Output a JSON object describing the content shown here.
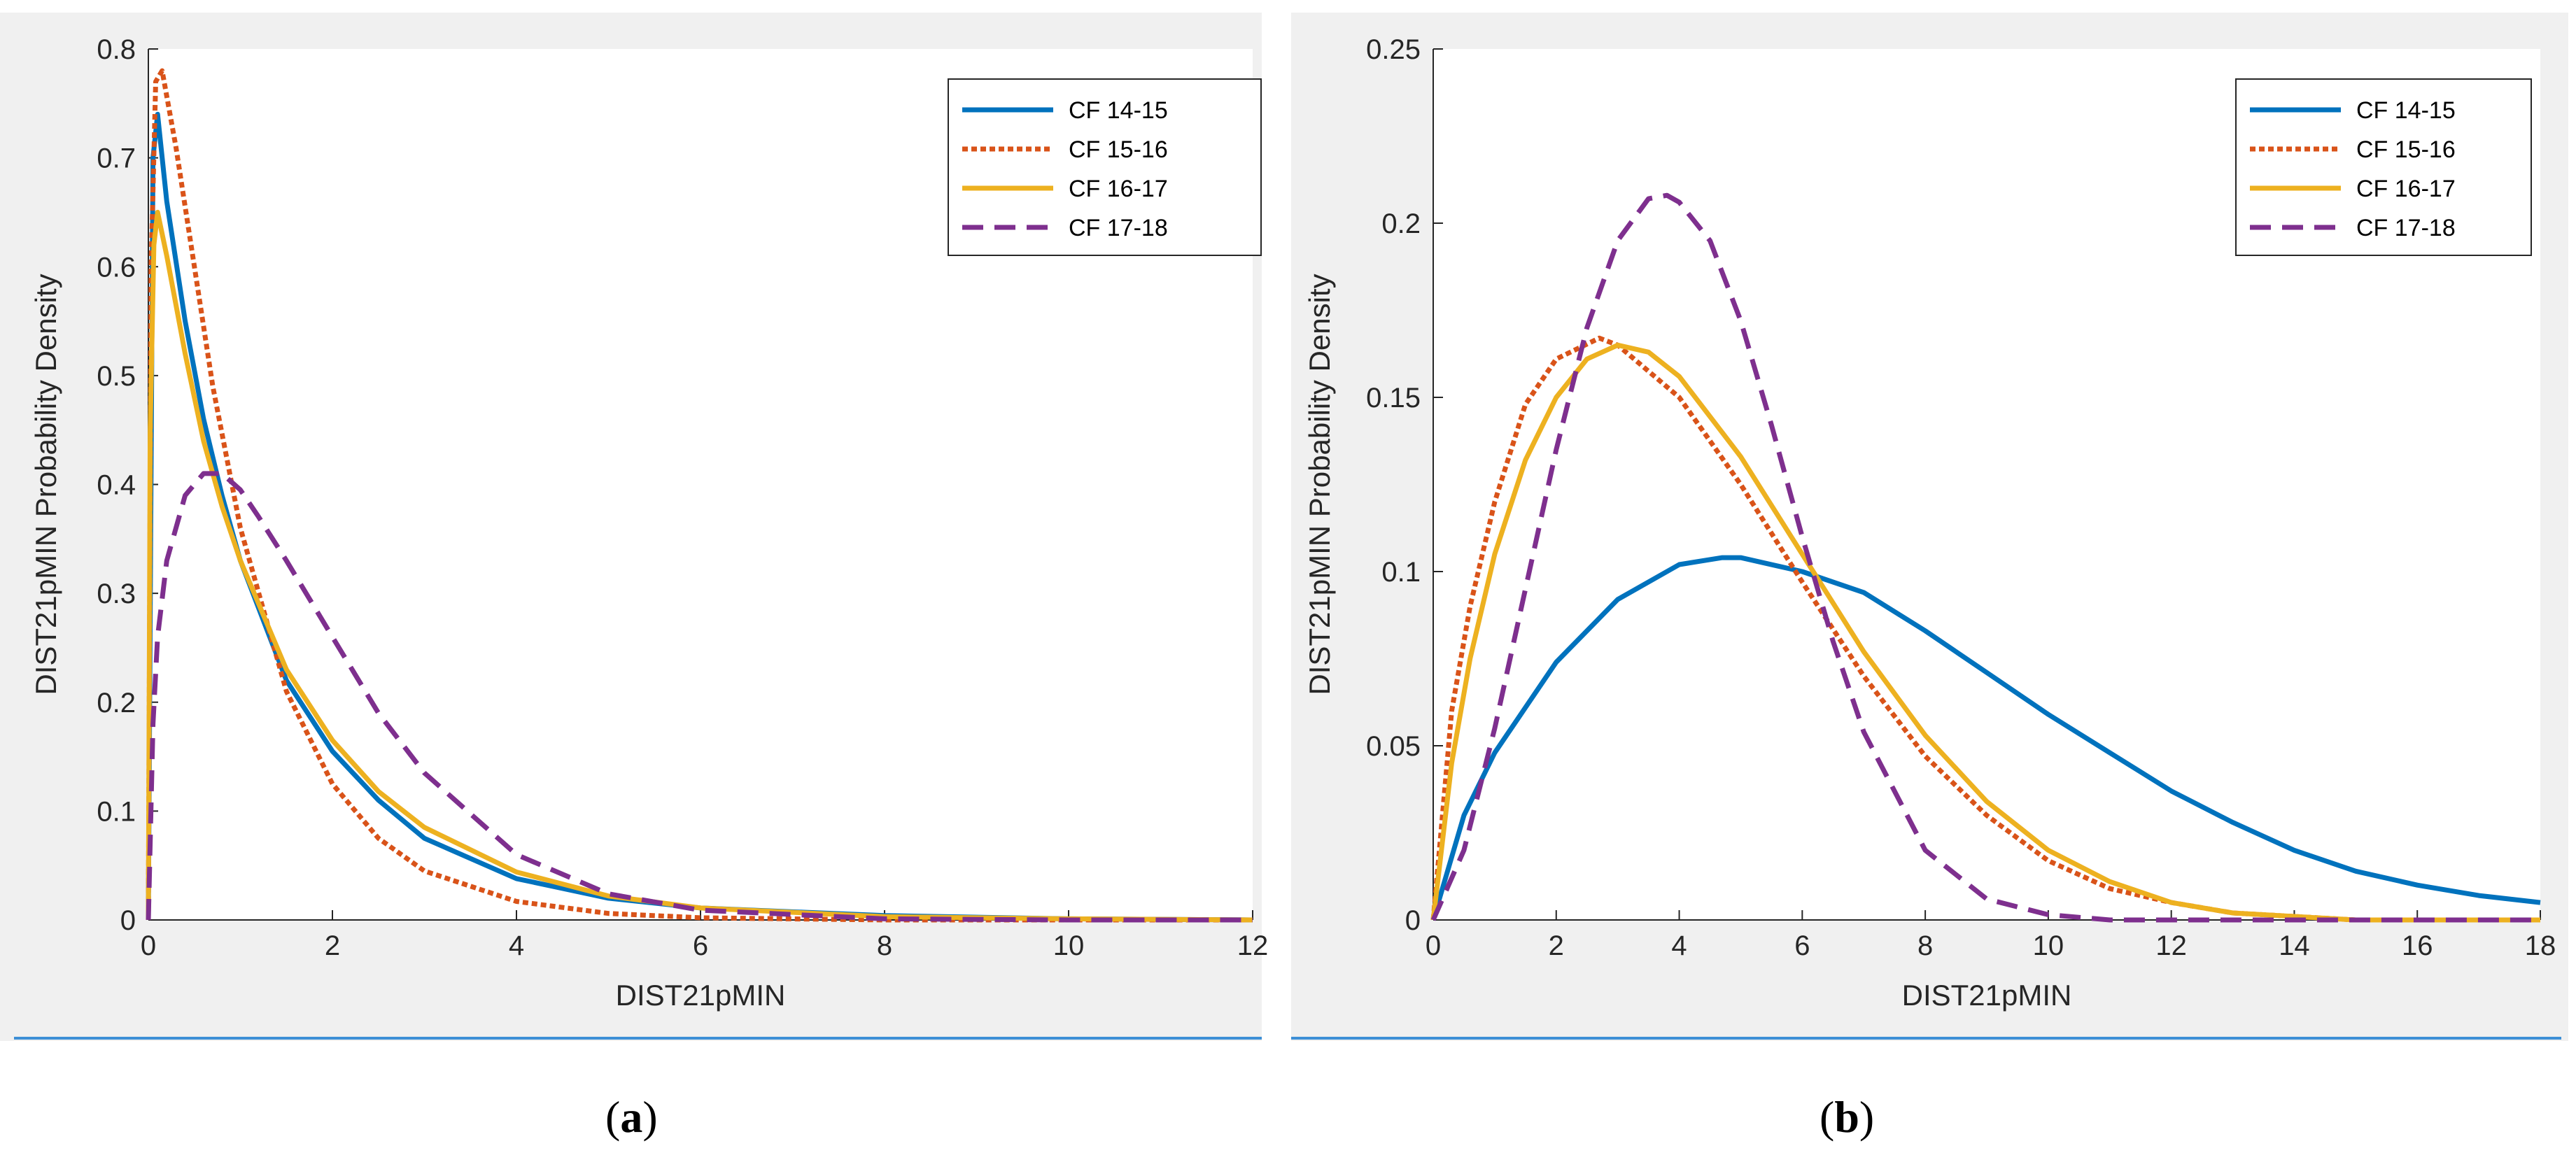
{
  "chart_data": [
    {
      "id": "a",
      "type": "line",
      "caption": "a",
      "xlabel": "DIST21pMIN",
      "ylabel": "DIST21pMIN Probability Density",
      "xlim": [
        0,
        12
      ],
      "ylim": [
        0,
        0.8
      ],
      "xticks": [
        "0",
        "2",
        "4",
        "6",
        "8",
        "10",
        "12"
      ],
      "yticks": [
        "0",
        "0.1",
        "0.2",
        "0.3",
        "0.4",
        "0.5",
        "0.6",
        "0.7",
        "0.8"
      ],
      "legend_position": "top-right",
      "series": [
        {
          "name": "CF 14-15",
          "color": "#0072BD",
          "style": "solid",
          "x": [
            0,
            0.05,
            0.1,
            0.2,
            0.4,
            0.6,
            0.8,
            1.0,
            1.5,
            2,
            2.5,
            3,
            4,
            5,
            6,
            8,
            10,
            12
          ],
          "y": [
            0,
            0.7,
            0.74,
            0.66,
            0.55,
            0.46,
            0.39,
            0.33,
            0.22,
            0.155,
            0.11,
            0.075,
            0.038,
            0.02,
            0.011,
            0.004,
            0.001,
            0
          ]
        },
        {
          "name": "CF 15-16",
          "color": "#D95319",
          "style": "dotted",
          "x": [
            0,
            0.03,
            0.08,
            0.15,
            0.3,
            0.5,
            0.7,
            1.0,
            1.5,
            2,
            2.5,
            3,
            4,
            5,
            6,
            8,
            10,
            12
          ],
          "y": [
            0,
            0.6,
            0.77,
            0.78,
            0.71,
            0.6,
            0.49,
            0.36,
            0.21,
            0.125,
            0.075,
            0.045,
            0.017,
            0.006,
            0.002,
            0,
            0,
            0
          ]
        },
        {
          "name": "CF 16-17",
          "color": "#EDB120",
          "style": "solid",
          "x": [
            0,
            0.02,
            0.06,
            0.1,
            0.2,
            0.4,
            0.6,
            0.8,
            1.0,
            1.5,
            2,
            2.5,
            3,
            4,
            5,
            6,
            8,
            10,
            12
          ],
          "y": [
            0,
            0.45,
            0.62,
            0.65,
            0.61,
            0.52,
            0.44,
            0.38,
            0.33,
            0.23,
            0.165,
            0.118,
            0.085,
            0.044,
            0.022,
            0.011,
            0.003,
            0.001,
            0
          ]
        },
        {
          "name": "CF 17-18",
          "color": "#7E2F8E",
          "style": "dashed",
          "x": [
            0,
            0.05,
            0.1,
            0.2,
            0.4,
            0.6,
            0.8,
            1.0,
            1.2,
            1.5,
            2,
            2.5,
            3,
            4,
            5,
            6,
            8,
            10,
            12
          ],
          "y": [
            0,
            0.18,
            0.26,
            0.33,
            0.39,
            0.41,
            0.41,
            0.395,
            0.37,
            0.33,
            0.26,
            0.19,
            0.135,
            0.06,
            0.024,
            0.009,
            0.001,
            0,
            0
          ]
        }
      ]
    },
    {
      "id": "b",
      "type": "line",
      "caption": "b",
      "xlabel": "DIST21pMIN",
      "ylabel": "DIST21pMIN Probability Density",
      "xlim": [
        0,
        18
      ],
      "ylim": [
        0,
        0.25
      ],
      "xticks": [
        "0",
        "2",
        "4",
        "6",
        "8",
        "10",
        "12",
        "14",
        "16",
        "18"
      ],
      "yticks": [
        "0",
        "0.05",
        "0.1",
        "0.15",
        "0.2",
        "0.25"
      ],
      "legend_position": "top-right",
      "series": [
        {
          "name": "CF 14-15",
          "color": "#0072BD",
          "style": "solid",
          "x": [
            0,
            0.5,
            1,
            2,
            3,
            4,
            4.7,
            5,
            6,
            7,
            8,
            9,
            10,
            11,
            12,
            13,
            14,
            15,
            16,
            17,
            18
          ],
          "y": [
            0,
            0.03,
            0.048,
            0.074,
            0.092,
            0.102,
            0.104,
            0.104,
            0.1,
            0.094,
            0.083,
            0.071,
            0.059,
            0.048,
            0.037,
            0.028,
            0.02,
            0.014,
            0.01,
            0.007,
            0.005
          ]
        },
        {
          "name": "CF 15-16",
          "color": "#D95319",
          "style": "dotted",
          "x": [
            0,
            0.3,
            0.6,
            1,
            1.5,
            2,
            2.7,
            3,
            4,
            5,
            6,
            7,
            8,
            9,
            10,
            11,
            12,
            13,
            14,
            15,
            16,
            17,
            18
          ],
          "y": [
            0,
            0.06,
            0.09,
            0.12,
            0.148,
            0.161,
            0.167,
            0.165,
            0.15,
            0.125,
            0.097,
            0.07,
            0.047,
            0.03,
            0.017,
            0.009,
            0.005,
            0.002,
            0.001,
            0,
            0,
            0,
            0
          ]
        },
        {
          "name": "CF 16-17",
          "color": "#EDB120",
          "style": "solid",
          "x": [
            0,
            0.3,
            0.6,
            1,
            1.5,
            2,
            2.5,
            3,
            3.5,
            4,
            5,
            6,
            7,
            8,
            9,
            10,
            11,
            12,
            13,
            14,
            15,
            16,
            17,
            18
          ],
          "y": [
            0,
            0.045,
            0.075,
            0.105,
            0.132,
            0.15,
            0.161,
            0.165,
            0.163,
            0.156,
            0.133,
            0.105,
            0.077,
            0.053,
            0.034,
            0.02,
            0.011,
            0.005,
            0.002,
            0.001,
            0,
            0,
            0,
            0
          ]
        },
        {
          "name": "CF 17-18",
          "color": "#7E2F8E",
          "style": "dashed",
          "x": [
            0,
            0.5,
            1,
            1.5,
            2,
            2.5,
            3,
            3.5,
            3.8,
            4,
            4.5,
            5,
            5.5,
            6,
            6.5,
            7,
            8,
            9,
            10,
            11,
            12,
            14,
            16,
            18
          ],
          "y": [
            0,
            0.02,
            0.055,
            0.095,
            0.135,
            0.17,
            0.195,
            0.207,
            0.208,
            0.206,
            0.195,
            0.172,
            0.142,
            0.11,
            0.08,
            0.054,
            0.02,
            0.006,
            0.0015,
            0,
            0,
            0,
            0,
            0
          ]
        }
      ]
    }
  ]
}
